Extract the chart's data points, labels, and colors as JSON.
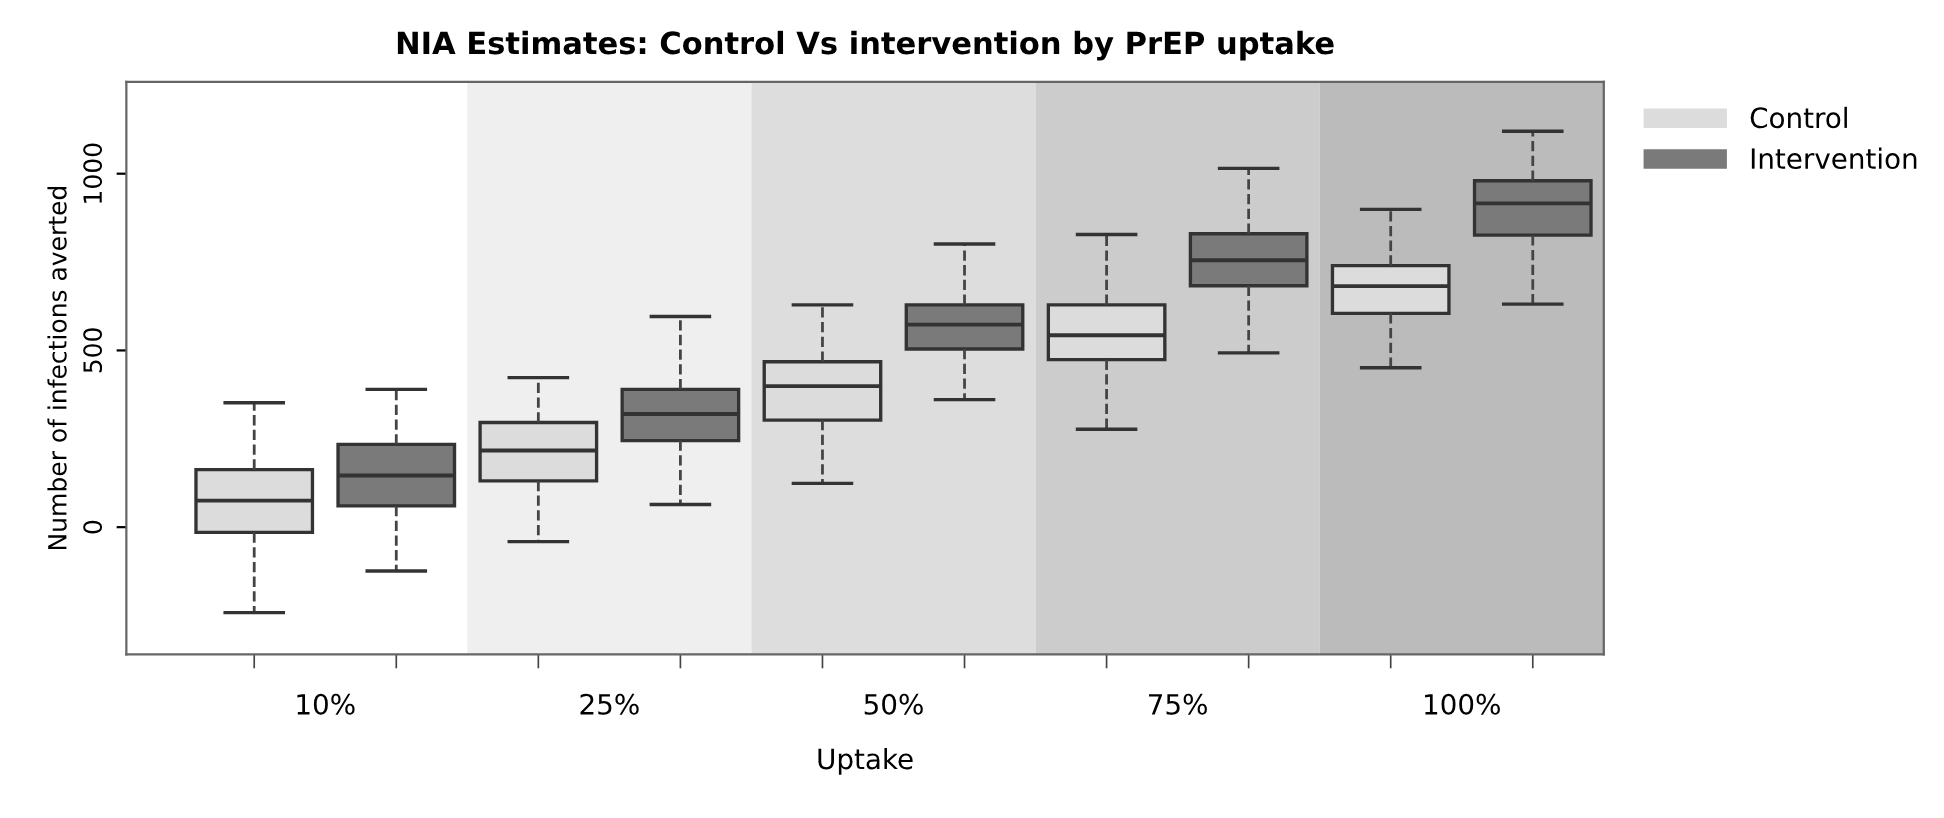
{
  "chart_data": {
    "type": "box",
    "title": "NIA Estimates: Control Vs intervention by PrEP uptake",
    "xlabel": "Uptake",
    "ylabel": "Number of infections averted",
    "categories": [
      "10%",
      "25%",
      "50%",
      "75%",
      "100%"
    ],
    "series": [
      {
        "name": "Control",
        "color": "#dcdcdc",
        "boxes": [
          {
            "low": -242,
            "q1": -15,
            "median": 75,
            "q3": 163,
            "high": 352
          },
          {
            "low": -41,
            "q1": 131,
            "median": 217,
            "q3": 296,
            "high": 423
          },
          {
            "low": 124,
            "q1": 303,
            "median": 399,
            "q3": 468,
            "high": 629
          },
          {
            "low": 277,
            "q1": 474,
            "median": 543,
            "q3": 629,
            "high": 828
          },
          {
            "low": 451,
            "q1": 605,
            "median": 682,
            "q3": 740,
            "high": 899
          }
        ]
      },
      {
        "name": "Intervention",
        "color": "#7a7a7a",
        "boxes": [
          {
            "low": -124,
            "q1": 60,
            "median": 146,
            "q3": 234,
            "high": 390
          },
          {
            "low": 64,
            "q1": 245,
            "median": 320,
            "q3": 390,
            "high": 596
          },
          {
            "low": 361,
            "q1": 504,
            "median": 573,
            "q3": 629,
            "high": 801
          },
          {
            "low": 493,
            "q1": 683,
            "median": 755,
            "q3": 830,
            "high": 1015
          },
          {
            "low": 631,
            "q1": 826,
            "median": 916,
            "q3": 980,
            "high": 1120
          }
        ]
      }
    ],
    "bands": [
      {
        "axis": "x",
        "from": "25%",
        "to": "25%",
        "color": "#efefef"
      },
      {
        "axis": "x",
        "from": "50%",
        "to": "50%",
        "color": "#dddddd"
      },
      {
        "axis": "x",
        "from": "75%",
        "to": "75%",
        "color": "#cccccc"
      },
      {
        "axis": "x",
        "from": "100%",
        "to": "100%",
        "color": "#bbbbbb"
      }
    ],
    "ylim": [
      -360,
      1260
    ],
    "yticks": [
      0,
      500,
      1000
    ],
    "grid": false,
    "legend": "right"
  }
}
